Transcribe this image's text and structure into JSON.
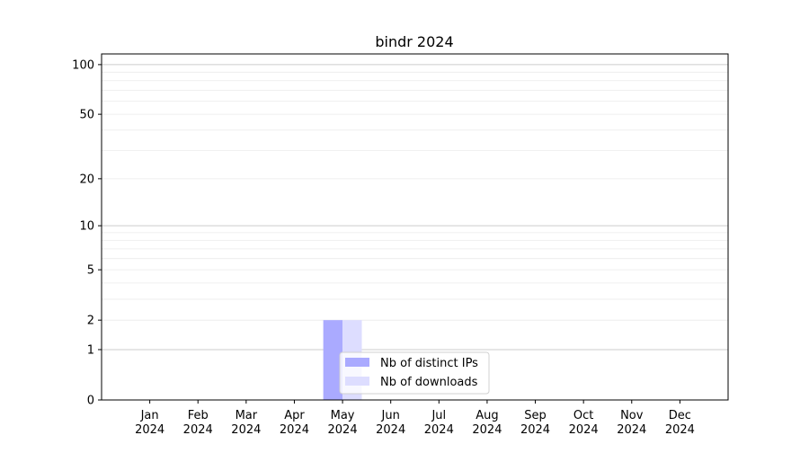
{
  "chart_data": {
    "type": "bar",
    "title": "bindr 2024",
    "xlabel": "",
    "ylabel": "",
    "y_scale": "log(1+y)",
    "ylim": [
      0,
      116
    ],
    "yticks": [
      0,
      1,
      2,
      5,
      10,
      20,
      50,
      100
    ],
    "ytick_labels": [
      "0",
      "1",
      "2",
      "5",
      "10",
      "20",
      "50",
      "100"
    ],
    "categories": [
      "Jan\n2024",
      "Feb\n2024",
      "Mar\n2024",
      "Apr\n2024",
      "May\n2024",
      "Jun\n2024",
      "Jul\n2024",
      "Aug\n2024",
      "Sep\n2024",
      "Oct\n2024",
      "Nov\n2024",
      "Dec\n2024"
    ],
    "series": [
      {
        "name": "Nb of distinct IPs",
        "color": "#aaaaff",
        "values": [
          0,
          0,
          0,
          0,
          2,
          0,
          0,
          0,
          0,
          0,
          0,
          0
        ]
      },
      {
        "name": "Nb of downloads",
        "color": "#ddddff",
        "values": [
          0,
          0,
          0,
          0,
          2,
          0,
          0,
          0,
          0,
          0,
          0,
          0
        ]
      }
    ],
    "grid": true,
    "legend_position": "lower center"
  }
}
